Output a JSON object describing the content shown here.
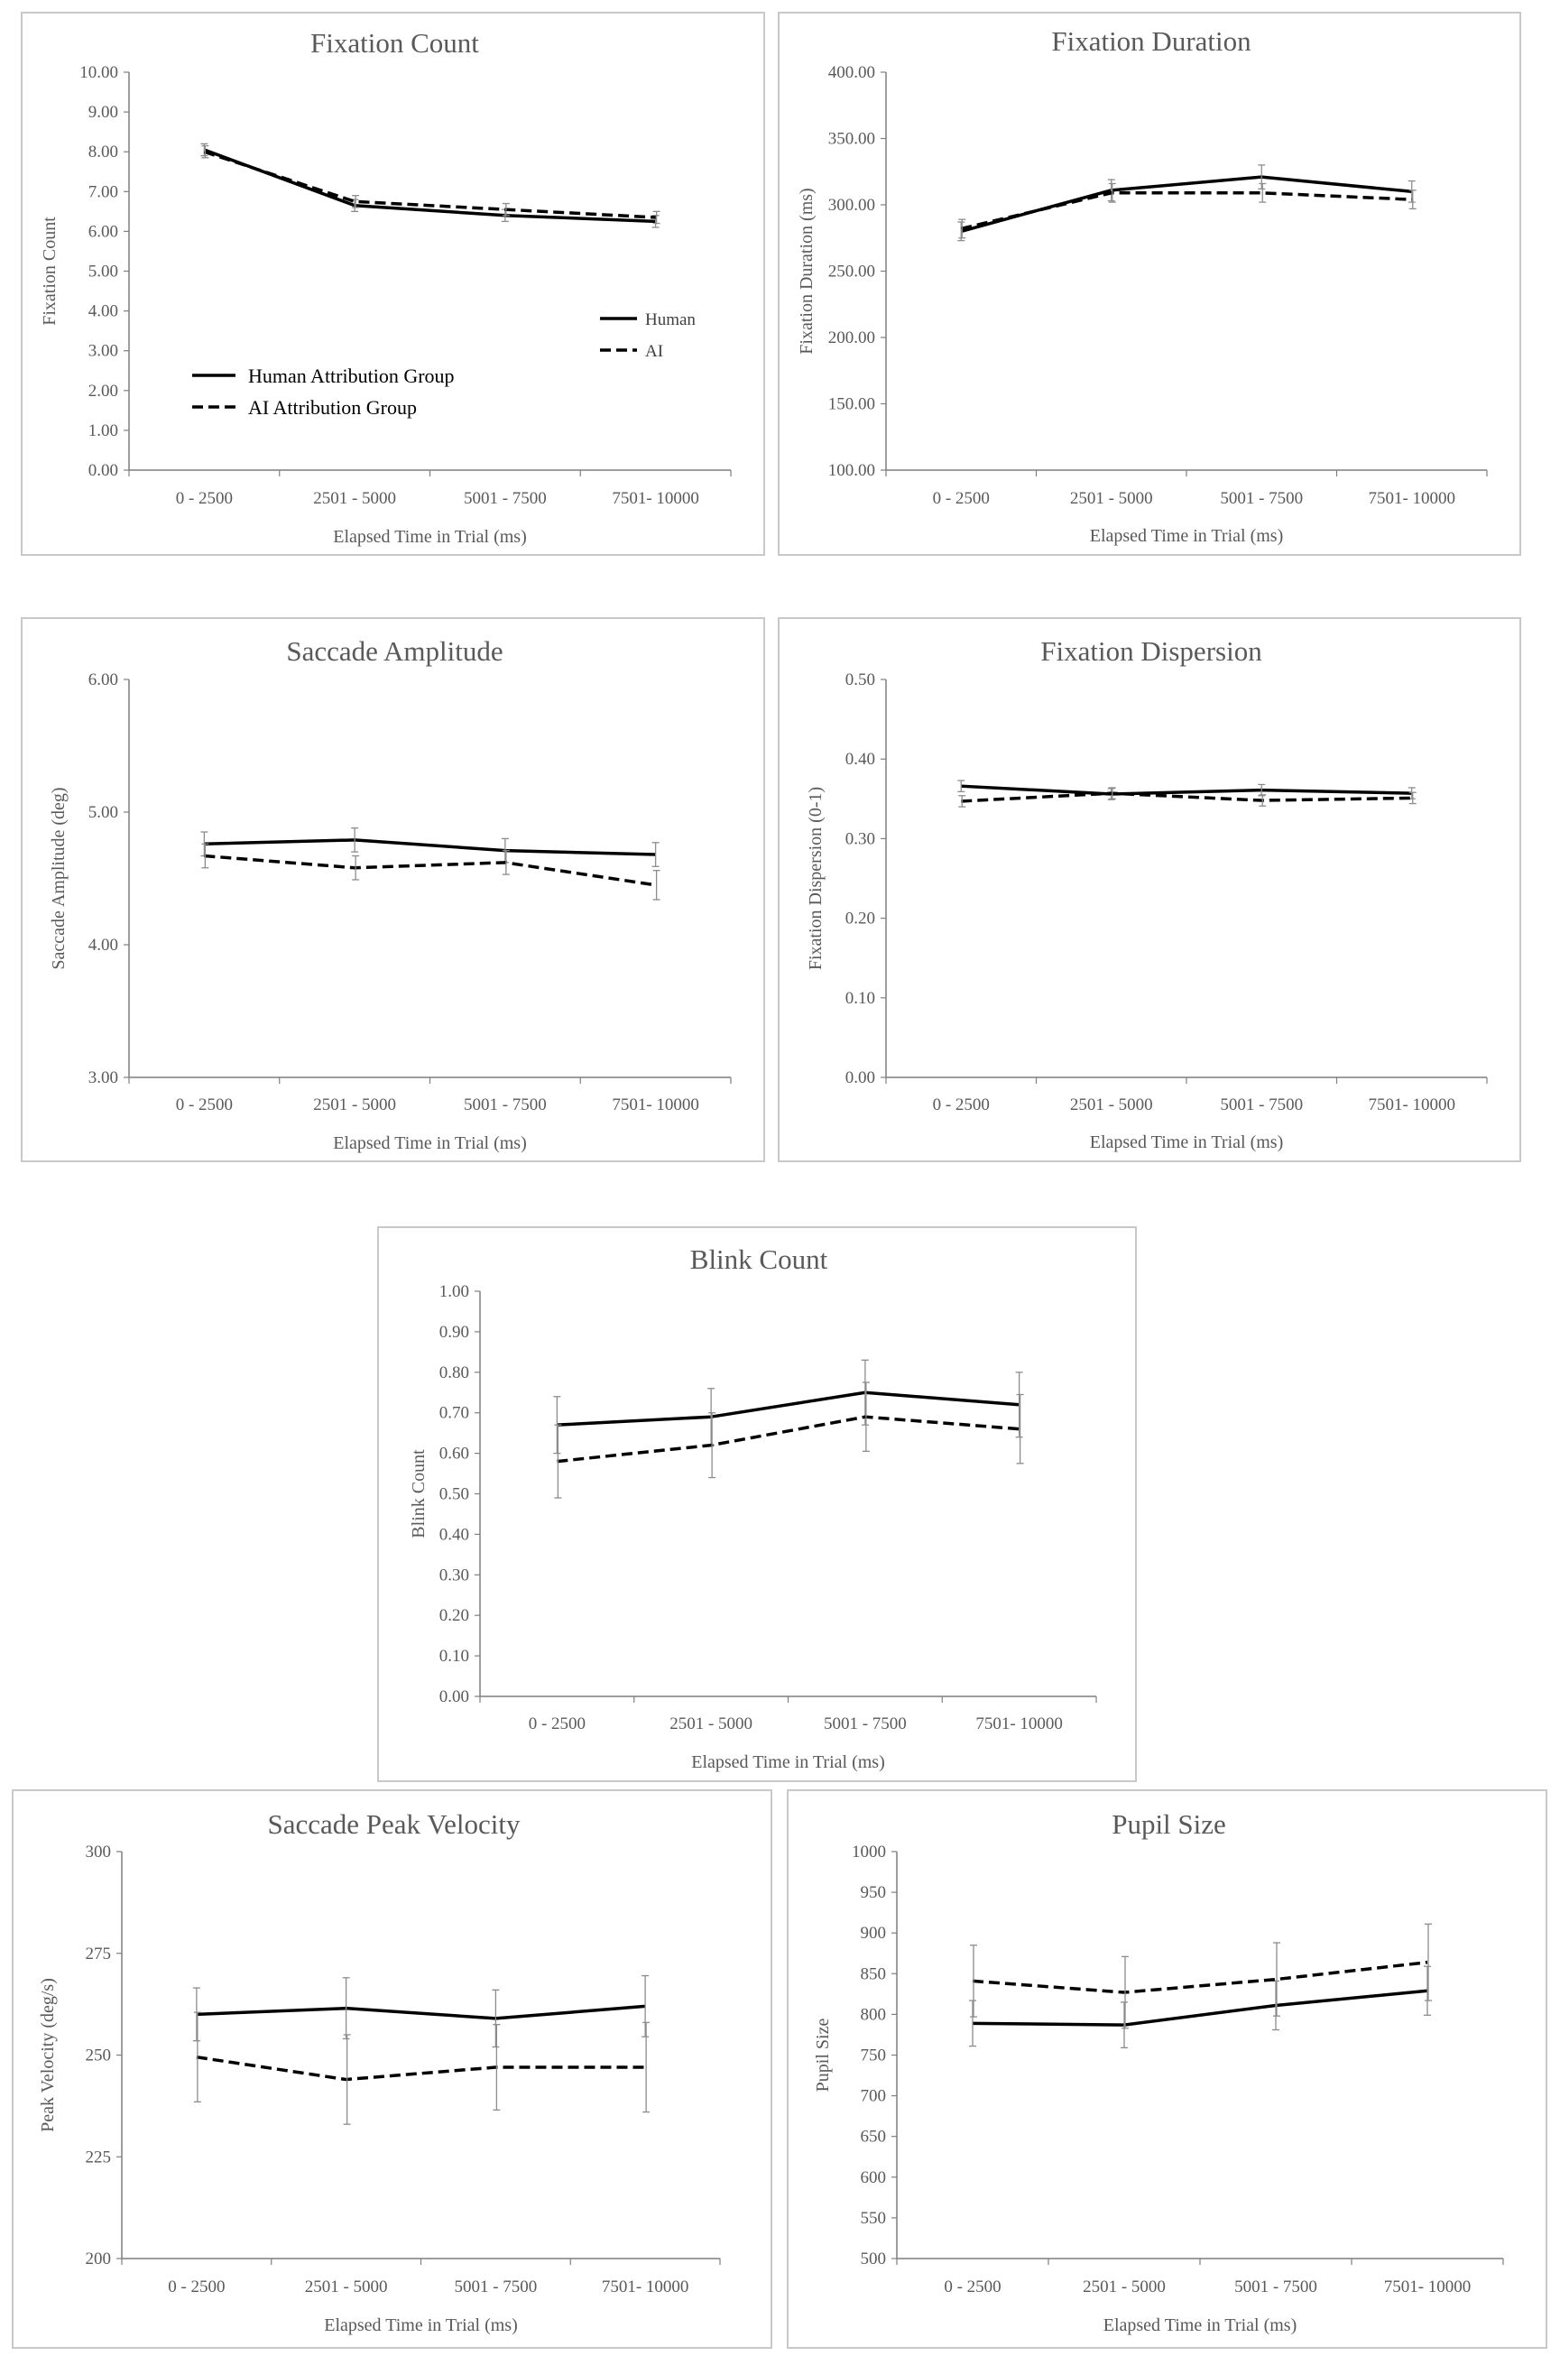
{
  "chart_data": [
    {
      "id": "fixation_count",
      "type": "line",
      "title": "Fixation Count",
      "xlabel": "Elapsed Time in Trial (ms)",
      "ylabel": "Fixation Count",
      "categories": [
        "0 - 2500",
        "2501 - 5000",
        "5001 - 7500",
        "7501- 10000"
      ],
      "ylim": [
        0,
        10
      ],
      "ystep": 1,
      "decimals": 2,
      "series": [
        {
          "name": "Human",
          "style": "solid",
          "values": [
            8.05,
            6.65,
            6.4,
            6.25
          ],
          "errors": [
            0.15,
            0.15,
            0.15,
            0.15
          ]
        },
        {
          "name": "AI",
          "style": "dashed",
          "values": [
            8.0,
            6.75,
            6.55,
            6.35
          ],
          "errors": [
            0.15,
            0.15,
            0.15,
            0.15
          ]
        }
      ],
      "legend_right": {
        "human": "Human",
        "ai": "AI"
      },
      "legend_groups": {
        "human": "Human Attribution Group",
        "ai": "AI Attribution Group"
      }
    },
    {
      "id": "fixation_duration",
      "type": "line",
      "title": "Fixation Duration",
      "xlabel": "Elapsed Time in Trial (ms)",
      "ylabel": "Fixation Duration (ms)",
      "categories": [
        "0 - 2500",
        "2501 - 5000",
        "5001 - 7500",
        "7501- 10000"
      ],
      "ylim": [
        100,
        400
      ],
      "ystep": 50,
      "decimals": 2,
      "series": [
        {
          "name": "Human",
          "style": "solid",
          "values": [
            280,
            311,
            321,
            310
          ],
          "errors": [
            7,
            8,
            9,
            8
          ]
        },
        {
          "name": "AI",
          "style": "dashed",
          "values": [
            282,
            309,
            309,
            304
          ],
          "errors": [
            7,
            7,
            7,
            7
          ]
        }
      ]
    },
    {
      "id": "saccade_amplitude",
      "type": "line",
      "title": "Saccade Amplitude",
      "xlabel": "Elapsed Time in Trial (ms)",
      "ylabel": "Saccade Amplitude (deg)",
      "categories": [
        "0 - 2500",
        "2501 - 5000",
        "5001 - 7500",
        "7501- 10000"
      ],
      "ylim": [
        3,
        6
      ],
      "ystep": 1,
      "decimals": 2,
      "series": [
        {
          "name": "Human",
          "style": "solid",
          "values": [
            4.76,
            4.79,
            4.71,
            4.68
          ],
          "errors": [
            0.09,
            0.09,
            0.09,
            0.09
          ]
        },
        {
          "name": "AI",
          "style": "dashed",
          "values": [
            4.67,
            4.58,
            4.62,
            4.45
          ],
          "errors": [
            0.09,
            0.09,
            0.09,
            0.11
          ]
        }
      ]
    },
    {
      "id": "fixation_dispersion",
      "type": "line",
      "title": "Fixation Dispersion",
      "xlabel": "Elapsed Time in Trial (ms)",
      "ylabel": "Fixation Dispersion (0-1)",
      "categories": [
        "0 - 2500",
        "2501 - 5000",
        "5001 - 7500",
        "7501- 10000"
      ],
      "ylim": [
        0,
        0.5
      ],
      "ystep": 0.1,
      "decimals": 2,
      "series": [
        {
          "name": "Human",
          "style": "solid",
          "values": [
            0.366,
            0.356,
            0.361,
            0.357
          ],
          "errors": [
            0.007,
            0.007,
            0.007,
            0.007
          ]
        },
        {
          "name": "AI",
          "style": "dashed",
          "values": [
            0.347,
            0.357,
            0.348,
            0.351
          ],
          "errors": [
            0.007,
            0.007,
            0.007,
            0.007
          ]
        }
      ]
    },
    {
      "id": "blink_count",
      "type": "line",
      "title": "Blink Count",
      "xlabel": "Elapsed Time in Trial (ms)",
      "ylabel": "Blink Count",
      "categories": [
        "0 - 2500",
        "2501 - 5000",
        "5001 - 7500",
        "7501- 10000"
      ],
      "ylim": [
        0,
        1
      ],
      "ystep": 0.1,
      "decimals": 2,
      "series": [
        {
          "name": "Human",
          "style": "solid",
          "values": [
            0.67,
            0.69,
            0.75,
            0.72
          ],
          "errors": [
            0.07,
            0.07,
            0.08,
            0.08
          ]
        },
        {
          "name": "AI",
          "style": "dashed",
          "values": [
            0.58,
            0.62,
            0.69,
            0.66
          ],
          "errors": [
            0.09,
            0.08,
            0.085,
            0.085
          ]
        }
      ]
    },
    {
      "id": "saccade_peak_velocity",
      "type": "line",
      "title": "Saccade Peak Velocity",
      "xlabel": "Elapsed Time in Trial (ms)",
      "ylabel": "Peak Velocity (deg/s)",
      "categories": [
        "0 - 2500",
        "2501 - 5000",
        "5001 - 7500",
        "7501- 10000"
      ],
      "ylim": [
        200,
        300
      ],
      "ystep": 25,
      "decimals": 0,
      "series": [
        {
          "name": "Human",
          "style": "solid",
          "values": [
            260,
            261.5,
            259,
            262
          ],
          "errors": [
            6.5,
            7.5,
            7,
            7.5
          ]
        },
        {
          "name": "AI",
          "style": "dashed",
          "values": [
            249.5,
            244,
            247,
            247
          ],
          "errors": [
            11,
            11,
            10.5,
            11
          ]
        }
      ]
    },
    {
      "id": "pupil_size",
      "type": "line",
      "title": "Pupil Size",
      "xlabel": "Elapsed Time in Trial (ms)",
      "ylabel": "Pupil Size",
      "categories": [
        "0 - 2500",
        "2501 - 5000",
        "5001 - 7500",
        "7501- 10000"
      ],
      "ylim": [
        500,
        1000
      ],
      "ystep": 50,
      "decimals": 0,
      "series": [
        {
          "name": "Human",
          "style": "solid",
          "values": [
            789,
            787,
            811,
            829
          ],
          "errors": [
            28,
            28,
            30,
            30
          ]
        },
        {
          "name": "AI",
          "style": "dashed",
          "values": [
            841,
            827,
            843,
            864
          ],
          "errors": [
            44,
            44,
            45,
            47
          ]
        }
      ]
    }
  ]
}
